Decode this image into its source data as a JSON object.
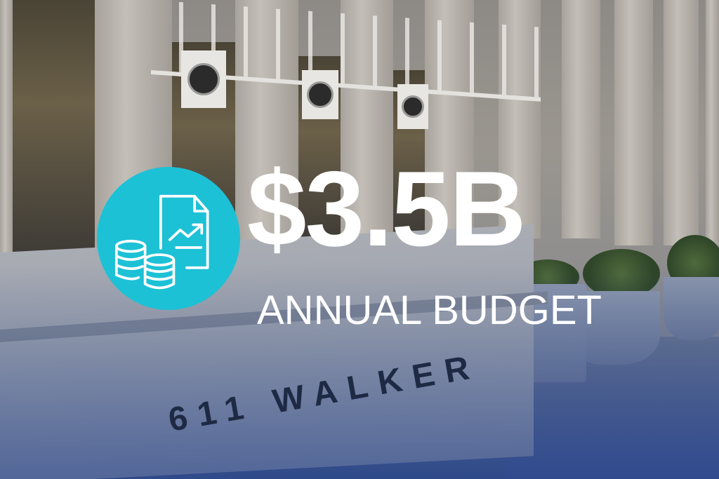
{
  "headline": {
    "amount": "$3.5B",
    "label": "ANNUAL BUDGET"
  },
  "badge": {
    "icon": "budget-document-coins-icon",
    "color": "#1dc1d6"
  },
  "photo": {
    "engraving": "611 WALKER"
  }
}
